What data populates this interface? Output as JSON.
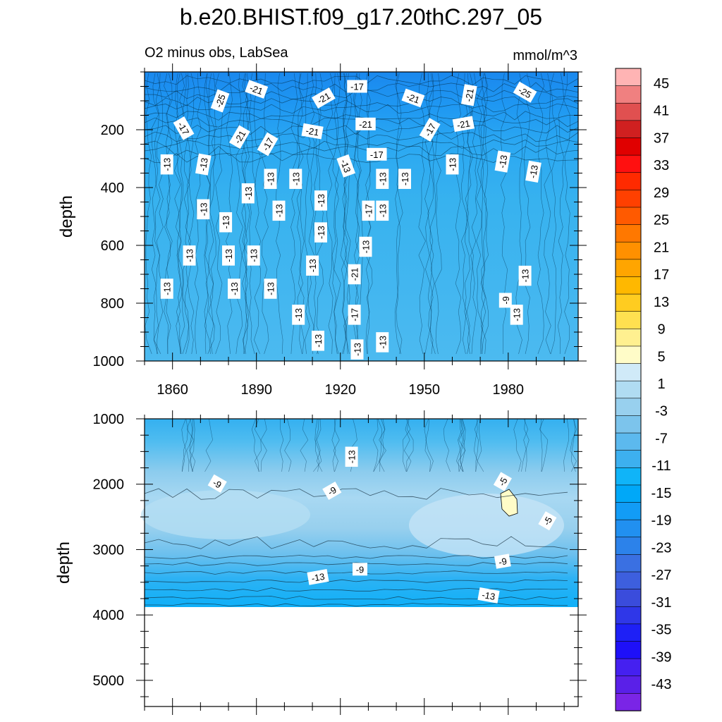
{
  "header": {
    "title": "b.e20.BHIST.f09_g17.20thC.297_05",
    "subtitle": "O2 minus obs, LabSea",
    "units": "mmol/m^3"
  },
  "chart_data": {
    "type": "heatmap",
    "variable": "O2 minus obs",
    "region": "LabSea",
    "units": "mmol/m^3",
    "x": {
      "label": "",
      "range": [
        1850,
        2005
      ],
      "ticks": [
        1860,
        1890,
        1920,
        1950,
        1980
      ]
    },
    "panels": [
      {
        "name": "upper",
        "ylabel": "depth",
        "ylim": [
          0,
          1000
        ],
        "yticks": [
          200,
          400,
          600,
          800,
          1000
        ],
        "contour_labels": [
          {
            "text": "-17",
            "x": 1926,
            "depth": 50,
            "rot": 0
          },
          {
            "text": "-25",
            "x": 1877,
            "depth": 100,
            "rot": -70
          },
          {
            "text": "-21",
            "x": 1890,
            "depth": 60,
            "rot": 20
          },
          {
            "text": "-21",
            "x": 1914,
            "depth": 90,
            "rot": -30
          },
          {
            "text": "-21",
            "x": 1946,
            "depth": 90,
            "rot": 20
          },
          {
            "text": "-21",
            "x": 1966,
            "depth": 80,
            "rot": -80
          },
          {
            "text": "-25",
            "x": 1986,
            "depth": 70,
            "rot": 30
          },
          {
            "text": "-17",
            "x": 1864,
            "depth": 195,
            "rot": 60
          },
          {
            "text": "-21",
            "x": 1884,
            "depth": 225,
            "rot": -60
          },
          {
            "text": "-17",
            "x": 1894,
            "depth": 250,
            "rot": -60
          },
          {
            "text": "-21",
            "x": 1910,
            "depth": 205,
            "rot": 10
          },
          {
            "text": "-21",
            "x": 1929,
            "depth": 180,
            "rot": 0
          },
          {
            "text": "-17",
            "x": 1952,
            "depth": 200,
            "rot": -60
          },
          {
            "text": "-21",
            "x": 1964,
            "depth": 180,
            "rot": -10
          },
          {
            "text": "-13",
            "x": 1858,
            "depth": 320,
            "rot": -90
          },
          {
            "text": "-13",
            "x": 1871,
            "depth": 320,
            "rot": -80
          },
          {
            "text": "-17",
            "x": 1933,
            "depth": 285,
            "rot": 0
          },
          {
            "text": "-13",
            "x": 1922,
            "depth": 325,
            "rot": 70
          },
          {
            "text": "-13",
            "x": 1887,
            "depth": 420,
            "rot": -90
          },
          {
            "text": "-13",
            "x": 1895,
            "depth": 370,
            "rot": -90
          },
          {
            "text": "-13",
            "x": 1904,
            "depth": 370,
            "rot": -90
          },
          {
            "text": "-13",
            "x": 1935,
            "depth": 370,
            "rot": -90
          },
          {
            "text": "-13",
            "x": 1943,
            "depth": 370,
            "rot": -90
          },
          {
            "text": "-13",
            "x": 1960,
            "depth": 320,
            "rot": -90
          },
          {
            "text": "-13",
            "x": 1978,
            "depth": 310,
            "rot": -80
          },
          {
            "text": "-13",
            "x": 1989,
            "depth": 345,
            "rot": -80
          },
          {
            "text": "-13",
            "x": 1871,
            "depth": 475,
            "rot": -90
          },
          {
            "text": "-13",
            "x": 1879,
            "depth": 520,
            "rot": -90
          },
          {
            "text": "-13",
            "x": 1898,
            "depth": 480,
            "rot": -90
          },
          {
            "text": "-13",
            "x": 1913,
            "depth": 445,
            "rot": -90
          },
          {
            "text": "-17",
            "x": 1930,
            "depth": 480,
            "rot": -90
          },
          {
            "text": "-13",
            "x": 1935,
            "depth": 480,
            "rot": -90
          },
          {
            "text": "-13",
            "x": 1913,
            "depth": 555,
            "rot": -90
          },
          {
            "text": "-13",
            "x": 1866,
            "depth": 635,
            "rot": -90
          },
          {
            "text": "-13",
            "x": 1880,
            "depth": 635,
            "rot": -90
          },
          {
            "text": "-13",
            "x": 1889,
            "depth": 635,
            "rot": -90
          },
          {
            "text": "-13",
            "x": 1929,
            "depth": 605,
            "rot": -90
          },
          {
            "text": "-13",
            "x": 1910,
            "depth": 670,
            "rot": -90
          },
          {
            "text": "-21",
            "x": 1925,
            "depth": 700,
            "rot": -90
          },
          {
            "text": "-13",
            "x": 1986,
            "depth": 705,
            "rot": -90
          },
          {
            "text": "-13",
            "x": 1858,
            "depth": 750,
            "rot": -90
          },
          {
            "text": "-13",
            "x": 1882,
            "depth": 750,
            "rot": -90
          },
          {
            "text": "-13",
            "x": 1895,
            "depth": 750,
            "rot": -90
          },
          {
            "text": "-9",
            "x": 1979,
            "depth": 790,
            "rot": -90
          },
          {
            "text": "-13",
            "x": 1905,
            "depth": 840,
            "rot": -90
          },
          {
            "text": "-17",
            "x": 1925,
            "depth": 840,
            "rot": -90
          },
          {
            "text": "-13",
            "x": 1983,
            "depth": 840,
            "rot": -90
          },
          {
            "text": "-13",
            "x": 1912,
            "depth": 930,
            "rot": -90
          },
          {
            "text": "-13",
            "x": 1935,
            "depth": 935,
            "rot": -90
          },
          {
            "text": "-13",
            "x": 1926,
            "depth": 960,
            "rot": -90
          }
        ]
      },
      {
        "name": "lower",
        "ylabel": "depth",
        "ylim": [
          1000,
          5400
        ],
        "yticks": [
          1000,
          2000,
          3000,
          4000,
          5000
        ],
        "data_bottom_depth": 3870,
        "contour_labels": [
          {
            "text": "-13",
            "x": 1924,
            "depth": 1580,
            "rot": -90
          },
          {
            "text": "-9",
            "x": 1876,
            "depth": 1990,
            "rot": 30
          },
          {
            "text": "-9",
            "x": 1917,
            "depth": 2100,
            "rot": -30
          },
          {
            "text": "-5",
            "x": 1978,
            "depth": 1960,
            "rot": -60
          },
          {
            "text": "-5",
            "x": 1994,
            "depth": 2560,
            "rot": -60
          },
          {
            "text": "-9",
            "x": 1978,
            "depth": 3180,
            "rot": -10
          },
          {
            "text": "-9",
            "x": 1927,
            "depth": 3300,
            "rot": 0
          },
          {
            "text": "-13",
            "x": 1912,
            "depth": 3420,
            "rot": -10
          },
          {
            "text": "-13",
            "x": 1973,
            "depth": 3700,
            "rot": 10
          }
        ]
      }
    ],
    "colorbar": {
      "labels": [
        "45",
        "41",
        "37",
        "33",
        "29",
        "25",
        "21",
        "17",
        "13",
        "9",
        "5",
        "1",
        "-3",
        "-7",
        "-11",
        "-15",
        "-19",
        "-23",
        "-27",
        "-31",
        "-35",
        "-39",
        "-43"
      ],
      "colors": [
        "#ffb4b4",
        "#f08080",
        "#e05050",
        "#d02020",
        "#e00000",
        "#ff1010",
        "#ff2a00",
        "#ff4000",
        "#ff5a00",
        "#ff7800",
        "#ff9000",
        "#ffa500",
        "#ffb800",
        "#ffcc20",
        "#ffe050",
        "#fff090",
        "#fffcc8",
        "#d0eaf8",
        "#b0dcf2",
        "#98d0ee",
        "#7cc4ec",
        "#5cb9ee",
        "#3db0ef",
        "#10b4f8",
        "#00a8f8",
        "#129cf6",
        "#2190f0",
        "#2c82ea",
        "#3a70e2",
        "#3d5fde",
        "#3a4cdc",
        "#2f37e8",
        "#1e20f6",
        "#1e10f8",
        "#4520f0",
        "#5a20e8",
        "#7a25e6"
      ]
    }
  }
}
